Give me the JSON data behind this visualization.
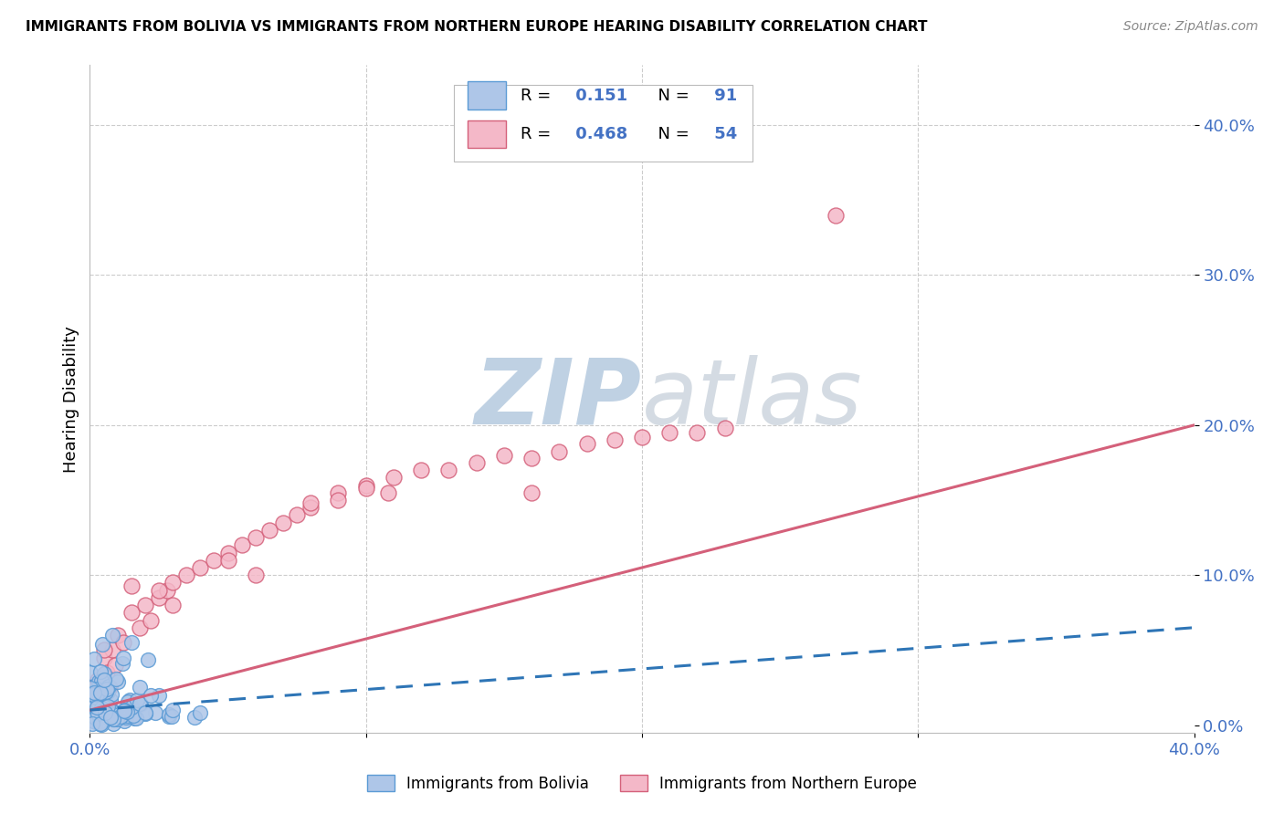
{
  "title": "IMMIGRANTS FROM BOLIVIA VS IMMIGRANTS FROM NORTHERN EUROPE HEARING DISABILITY CORRELATION CHART",
  "source": "Source: ZipAtlas.com",
  "ylabel": "Hearing Disability",
  "xlim": [
    0.0,
    0.4
  ],
  "ylim": [
    -0.005,
    0.44
  ],
  "bolivia_color": "#aec6e8",
  "bolivia_edge_color": "#5b9bd5",
  "northern_europe_color": "#f4b8c8",
  "northern_europe_edge_color": "#d4607a",
  "bolivia_R": 0.151,
  "bolivia_N": 91,
  "northern_europe_R": 0.468,
  "northern_europe_N": 54,
  "bolivia_line_color": "#2e75b6",
  "northern_europe_line_color": "#d4607a",
  "grid_color": "#cccccc",
  "background_color": "#ffffff",
  "watermark_color": "#ccd8e8",
  "legend_label_1": "Immigrants from Bolivia",
  "legend_label_2": "Immigrants from Northern Europe",
  "ytick_values": [
    0.0,
    0.1,
    0.2,
    0.3,
    0.4
  ]
}
